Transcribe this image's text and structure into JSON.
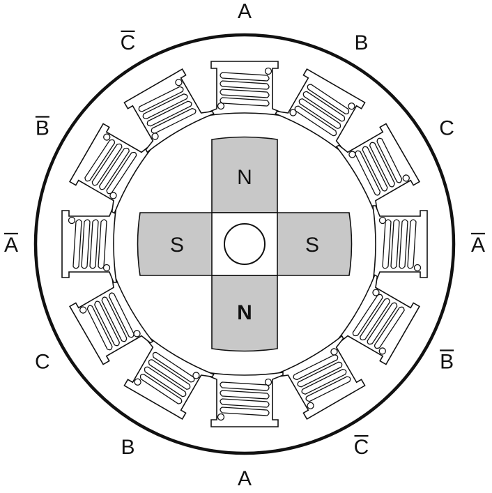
{
  "stator": {
    "phase_labels": [
      {
        "text": "A",
        "bar": false
      },
      {
        "text": "B",
        "bar": false
      },
      {
        "text": "C",
        "bar": false
      },
      {
        "text": "A",
        "bar": true
      },
      {
        "text": "B",
        "bar": true
      },
      {
        "text": "C",
        "bar": true
      },
      {
        "text": "A",
        "bar": false
      },
      {
        "text": "B",
        "bar": false
      },
      {
        "text": "C",
        "bar": false
      },
      {
        "text": "A",
        "bar": true
      },
      {
        "text": "B",
        "bar": true
      },
      {
        "text": "C",
        "bar": true
      }
    ],
    "slot_count": 12
  },
  "rotor": {
    "poles": [
      {
        "name": "rotor-pole-top",
        "label": "N",
        "bold": false
      },
      {
        "name": "rotor-pole-bottom",
        "label": "N",
        "bold": true
      },
      {
        "name": "rotor-pole-left",
        "label": "S",
        "bold": false
      },
      {
        "name": "rotor-pole-right",
        "label": "S",
        "bold": false
      }
    ]
  },
  "colors": {
    "ink": "#111111",
    "rotor_fill": "#c8c8c8",
    "background": "#ffffff"
  }
}
